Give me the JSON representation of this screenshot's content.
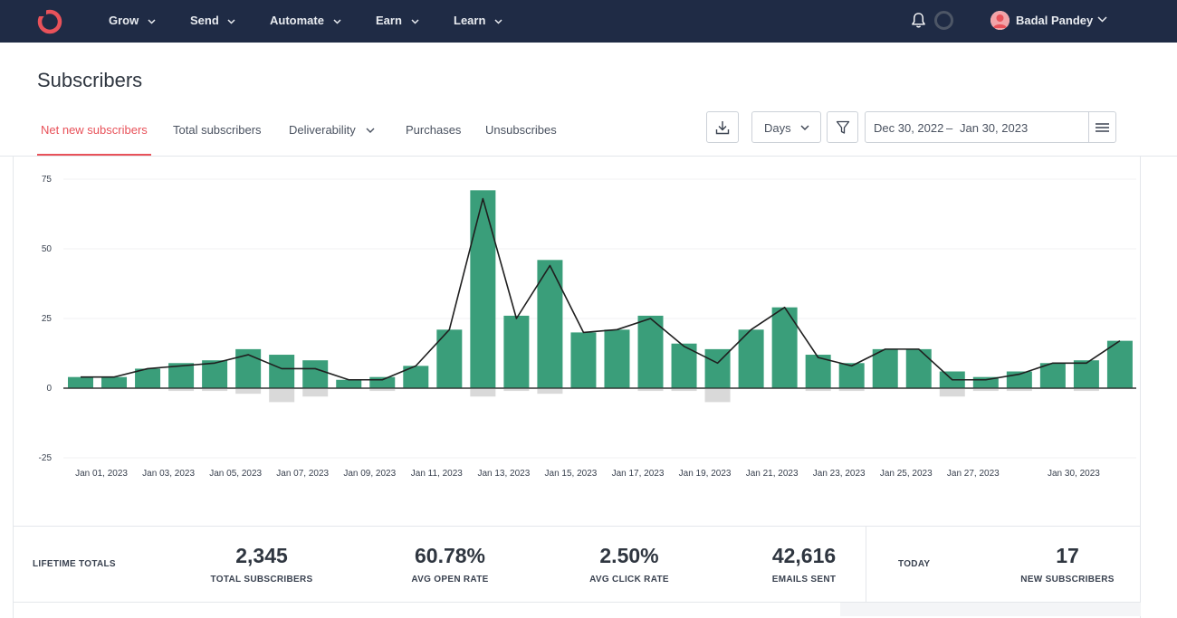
{
  "nav": {
    "items": [
      {
        "label": "Grow"
      },
      {
        "label": "Send"
      },
      {
        "label": "Automate"
      },
      {
        "label": "Earn"
      },
      {
        "label": "Learn"
      }
    ],
    "user_name": "Badal Pandey"
  },
  "page": {
    "title": "Subscribers"
  },
  "tabs": [
    {
      "label": "Net new subscribers",
      "active": true
    },
    {
      "label": "Total subscribers"
    },
    {
      "label": "Deliverability"
    },
    {
      "label": "Purchases"
    },
    {
      "label": "Unsubscribes"
    }
  ],
  "toolbar": {
    "interval": "Days",
    "date_start": "Dec 30, 2022",
    "date_sep": "–",
    "date_end": "Jan 30, 2023"
  },
  "colors": {
    "bar": "#3a9e7a",
    "negative": "#d9d9d9",
    "line": "#1f1f1f",
    "accent": "#e8525a",
    "nav_bg": "#1f2b45"
  },
  "chart_data": {
    "type": "bar",
    "y_ticks": [
      "75",
      "50",
      "25",
      "0",
      "-25"
    ],
    "ylim": [
      -25,
      75
    ],
    "x_tick_labels": [
      "Jan 01, 2023",
      "Jan 03, 2023",
      "Jan 05, 2023",
      "Jan 07, 2023",
      "Jan 09, 2023",
      "Jan 11, 2023",
      "Jan 13, 2023",
      "Jan 15, 2023",
      "Jan 17, 2023",
      "Jan 19, 2023",
      "Jan 21, 2023",
      "Jan 23, 2023",
      "Jan 25, 2023",
      "Jan 27, 2023",
      "Jan 30, 2023"
    ],
    "x_tick_days": [
      2,
      4,
      6,
      8,
      10,
      12,
      14,
      16,
      18,
      20,
      22,
      24,
      26,
      28,
      31
    ],
    "categories": [
      "Dec 30",
      "Dec 31",
      "Jan 01",
      "Jan 02",
      "Jan 03",
      "Jan 04",
      "Jan 05",
      "Jan 06",
      "Jan 07",
      "Jan 08",
      "Jan 09",
      "Jan 10",
      "Jan 11",
      "Jan 12",
      "Jan 13",
      "Jan 14",
      "Jan 15",
      "Jan 16",
      "Jan 17",
      "Jan 18",
      "Jan 19",
      "Jan 20",
      "Jan 21",
      "Jan 22",
      "Jan 23",
      "Jan 24",
      "Jan 25",
      "Jan 26",
      "Jan 27",
      "Jan 28",
      "Jan 29",
      "Jan 30"
    ],
    "series": [
      {
        "values": [
          4,
          4,
          7,
          9,
          10,
          14,
          12,
          10,
          3,
          4,
          8,
          21,
          71,
          26,
          46,
          20,
          21,
          26,
          16,
          14,
          21,
          29,
          12,
          9,
          14,
          14,
          6,
          4,
          6,
          9,
          10,
          17
        ]
      },
      {
        "values": [
          0,
          0,
          0,
          -1,
          -1,
          -2,
          -5,
          -3,
          0,
          -1,
          0,
          0,
          -3,
          -1,
          -2,
          0,
          0,
          -1,
          -1,
          -5,
          0,
          0,
          -1,
          -1,
          0,
          0,
          -3,
          -1,
          -1,
          0,
          -1,
          0
        ]
      },
      {
        "values": [
          4,
          4,
          7,
          8,
          9,
          12,
          7,
          7,
          3,
          3,
          8,
          21,
          68,
          25,
          44,
          20,
          21,
          25,
          15,
          9,
          21,
          29,
          11,
          8,
          14,
          14,
          3,
          3,
          5,
          9,
          9,
          17
        ]
      }
    ]
  },
  "totals": {
    "lifetime_label": "LIFETIME TOTALS",
    "stats": [
      {
        "value": "2,345",
        "label": "TOTAL SUBSCRIBERS"
      },
      {
        "value": "60.78%",
        "label": "AVG OPEN RATE"
      },
      {
        "value": "2.50%",
        "label": "AVG CLICK RATE"
      },
      {
        "value": "42,616",
        "label": "EMAILS SENT"
      }
    ],
    "today_label": "TODAY",
    "today_stat": {
      "value": "17",
      "label": "NEW SUBSCRIBERS"
    }
  }
}
